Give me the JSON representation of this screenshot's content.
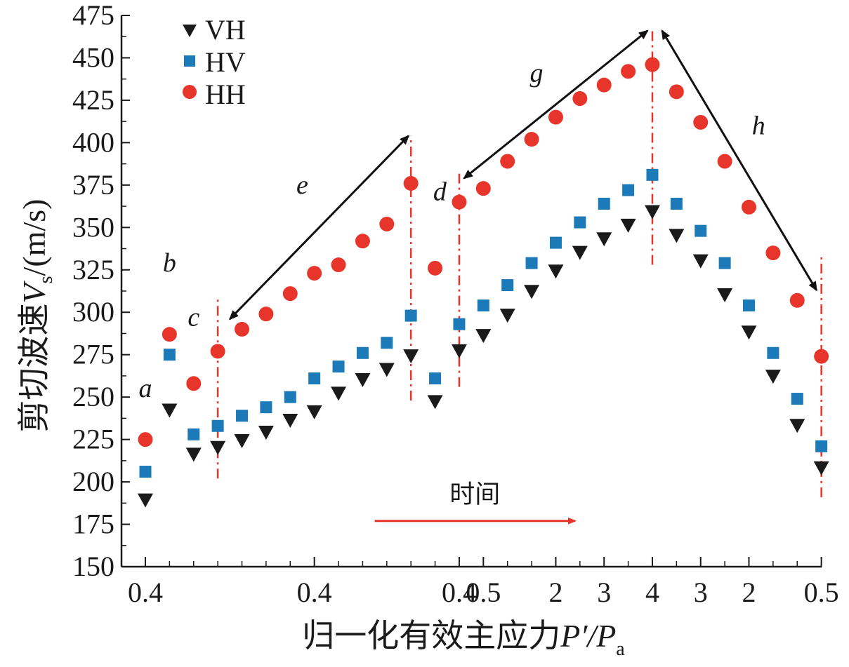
{
  "chart_data": {
    "type": "scatter",
    "ylabel_main": "剪切波速",
    "ylabel_var": "V",
    "ylabel_sub": "s",
    "ylabel_unit": "/(m/s)",
    "xlabel_main": "归一化有效主应力",
    "xlabel_var": "P′/P",
    "xlabel_sub": "a",
    "ylim": [
      150,
      475
    ],
    "yticks": [
      150,
      175,
      200,
      225,
      250,
      275,
      300,
      325,
      350,
      375,
      400,
      425,
      450,
      475
    ],
    "xlim": [
      -1,
      28
    ],
    "xtick_labels": [
      {
        "pos": 0,
        "label": "0.4"
      },
      {
        "pos": 7,
        "label": "0.4"
      },
      {
        "pos": 13,
        "label": "0.4"
      },
      {
        "pos": 14,
        "label": "0.5"
      },
      {
        "pos": 17,
        "label": "2"
      },
      {
        "pos": 19,
        "label": "3"
      },
      {
        "pos": 21,
        "label": "4"
      },
      {
        "pos": 23,
        "label": "3"
      },
      {
        "pos": 25,
        "label": "2"
      },
      {
        "pos": 28,
        "label": "0.5"
      }
    ],
    "minor_xticks": [
      1,
      2,
      3,
      4,
      5,
      6,
      8,
      9,
      10,
      11,
      12,
      15,
      16,
      18,
      20,
      22,
      24,
      26,
      27
    ],
    "x": [
      0,
      1,
      2,
      3,
      4,
      5,
      6,
      7,
      8,
      9,
      10,
      11,
      12,
      13,
      14,
      15,
      16,
      17,
      18,
      19,
      20,
      21,
      22,
      23,
      24,
      25,
      26,
      27,
      28
    ],
    "series": [
      {
        "name": "VH",
        "marker": "triangle-down",
        "color": "#1a1a1a",
        "values": [
          189,
          242,
          216,
          220,
          224,
          229,
          236,
          241,
          252,
          260,
          266,
          274,
          247,
          277,
          286,
          298,
          312,
          324,
          335,
          343,
          351,
          359,
          345,
          330,
          310,
          288,
          262,
          233,
          208
        ]
      },
      {
        "name": "HV",
        "marker": "square",
        "color": "#1c7ab8",
        "values": [
          206,
          275,
          228,
          233,
          239,
          244,
          250,
          261,
          268,
          276,
          282,
          298,
          261,
          293,
          304,
          316,
          329,
          341,
          353,
          364,
          372,
          381,
          364,
          348,
          329,
          304,
          276,
          249,
          221
        ]
      },
      {
        "name": "HH",
        "marker": "circle",
        "color": "#e8352b",
        "values": [
          225,
          287,
          258,
          277,
          290,
          299,
          311,
          323,
          328,
          342,
          352,
          376,
          326,
          365,
          373,
          389,
          402,
          415,
          426,
          434,
          442,
          446,
          430,
          412,
          389,
          362,
          335,
          307,
          274
        ]
      }
    ],
    "point_labels": [
      {
        "text": "a",
        "at_x": 0,
        "at_y": 250
      },
      {
        "text": "b",
        "at_x": 1,
        "at_y": 324
      },
      {
        "text": "c",
        "at_x": 2,
        "at_y": 292
      },
      {
        "text": "d",
        "at_x": 12.2,
        "at_y": 366
      },
      {
        "text": "e",
        "at_x": 6.5,
        "at_y": 370
      },
      {
        "text": "g",
        "at_x": 16.2,
        "at_y": 436
      },
      {
        "text": "h",
        "at_x": 25.4,
        "at_y": 405
      }
    ],
    "vlines": [
      {
        "x": 3,
        "y0": 202,
        "y1": 308
      },
      {
        "x": 11,
        "y0": 248,
        "y1": 404
      },
      {
        "x": 13,
        "y0": 256,
        "y1": 384
      },
      {
        "x": 21,
        "y0": 328,
        "y1": 466
      },
      {
        "x": 28,
        "y0": 191,
        "y1": 333
      }
    ],
    "arrows": [
      {
        "name": "e",
        "x0": 3.5,
        "y0": 296,
        "x1": 10.9,
        "y1": 404
      },
      {
        "name": "g",
        "x0": 13.2,
        "y0": 379,
        "x1": 20.8,
        "y1": 466
      },
      {
        "name": "h",
        "x0": 21.4,
        "y0": 466,
        "x1": 27.8,
        "y1": 313
      }
    ],
    "time_label": "时间",
    "time_arrow": {
      "x0": 9.5,
      "x1": 17.8,
      "y": 177
    },
    "legend_position": "top-left"
  }
}
